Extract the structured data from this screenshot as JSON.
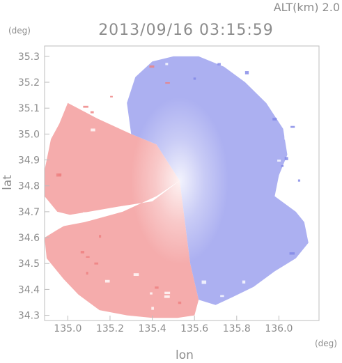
{
  "chart_data": {
    "type": "heatmap",
    "title": "2013/09/16 03:15:59",
    "subtitle": "ALT(km) 2.0",
    "xlabel": "lon",
    "ylabel": "lat",
    "x_unit": "(deg)",
    "y_unit": "(deg)",
    "xlim": [
      134.89,
      136.19
    ],
    "ylim": [
      34.28,
      35.34
    ],
    "x_ticks": [
      135.0,
      135.2,
      135.4,
      135.6,
      135.8,
      136.0
    ],
    "x_tick_labels": [
      "135.0",
      "135.2",
      "135.4",
      "135.6",
      "135.8",
      "136.0"
    ],
    "y_ticks": [
      34.3,
      34.4,
      34.5,
      34.6,
      34.7,
      34.8,
      34.9,
      35.0,
      35.1,
      35.2,
      35.3
    ],
    "y_tick_labels": [
      "34.3",
      "34.4",
      "34.5",
      "34.6",
      "34.7",
      "34.8",
      "34.9",
      "35.0",
      "35.1",
      "35.2",
      "35.3"
    ],
    "grid": false,
    "radar_center": {
      "lon": 135.53,
      "lat": 34.82
    },
    "colors": {
      "receding": "#f4a8a8",
      "approaching": "#a8acf0",
      "near_zero": "#f6f6fc"
    }
  }
}
